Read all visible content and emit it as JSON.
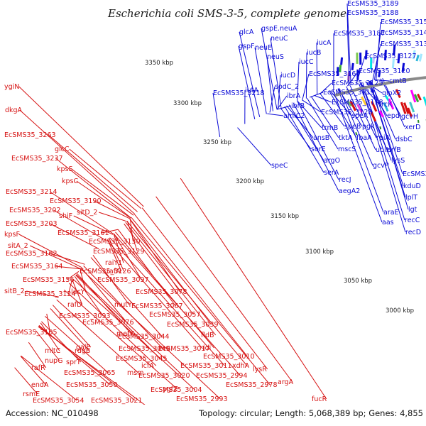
{
  "title": "Escherichia coli SMS-3-5, complete genome",
  "footer": {
    "accession": "Accession: NC_010498",
    "topology": "Topology: circular; Length: 5,068,389 bp; Genes: 4,855"
  },
  "kbp_ticks": [
    "3400 kbp",
    "3350 kbp",
    "3300 kbp",
    "3250 kbp",
    "3200 kbp",
    "3150 kbp",
    "3100 kbp",
    "3050 kbp",
    "3000 kbp"
  ],
  "colors": {
    "forward": "#0a0ad6",
    "reverse": "#d61010",
    "backbone": "#8a8a8a",
    "tick_dash": "#2a8a2a"
  },
  "forward_genes": [
    "EcSMS35_3189",
    "EcSMS35_3188",
    "EcSMS35_3155",
    "EcSMS35_3141",
    "EcSMS35_3131",
    "EcSMS35_3127",
    "EcSMS35_3187",
    "glcA",
    "gspE.neuA",
    "neuC",
    "gspF",
    "neuE",
    "neuS",
    "iucA",
    "iucB",
    "iucC",
    "iucD",
    "iutA",
    "sodC_2",
    "ibrA",
    "ibrB",
    "EcSMS35_3218",
    "amiC2",
    "EcSMS35_3167",
    "EcSMS35_3125",
    "EcSMS35_3119",
    "EcSMS35_3118",
    "EcSMS35_3128",
    "EcSMS35_3120",
    "cmtB",
    "glpX2",
    "frcK",
    "trmB",
    "ansB",
    "speA",
    "epd",
    "speB",
    "pgk",
    "tktA",
    "fbaA",
    "rpiA",
    "mscS",
    "sorE",
    "argO",
    "serA",
    "recJ",
    "aegA2",
    "speC",
    "gcvH",
    "xerD",
    "dsbC",
    "ubiH",
    "prfB",
    "gcvP",
    "lysS",
    "EcSMS35_3018",
    "kduD",
    "lplT",
    "araE",
    "lgt",
    "aas",
    "recC",
    "recD"
  ],
  "reverse_genes": [
    "ygiN",
    "dkgA",
    "EcSMS35_3263",
    "glcC",
    "EcSMS35_3237",
    "kpsS",
    "kpsC",
    "EcSMS35_3214",
    "EcSMS35_3190",
    "EcSMS35_3202",
    "EcSMS35_3203",
    "kpsF",
    "shiF",
    "sitD_2",
    "EcSMS35_3161",
    "sitA_2",
    "EcSMS35_3130",
    "EcSMS35_3162",
    "EcSMS35_3129",
    "EcSMS35_3164",
    "raiY1",
    "EcSMS35_3126",
    "rafA",
    "EcSMS35_3156",
    "sitB_2",
    "EcSMS35_3097",
    "EcSMS35_3124",
    "lacY",
    "EcSMS35_3078",
    "rafD",
    "mutY",
    "EcSMS35_3093",
    "EcSMS35_3067",
    "EcSMS35_3076",
    "EcSMS35_3057",
    "EcSMS35_3039",
    "EcSMS35_3105",
    "metK",
    "galP",
    "EcSMS35_3044",
    "mltC",
    "rdgB",
    "nupG",
    "sprT",
    "EcSMS35_3049",
    "EcSMS35_3017",
    "fldB",
    "idi",
    "EcSMS35_3045",
    "EcSMS35_3010",
    "rafR",
    "EcSMS35_3065",
    "msm",
    "icfA",
    "EcSMS35_3011",
    "xdhA",
    "endA",
    "EcSMS35_3050",
    "EcSMS35_3020",
    "EcSMS35_2994",
    "lysR",
    "rsmE",
    "ygfZ",
    "EcSMS35_3004",
    "EcSMS35_2978",
    "argA",
    "EcSMS35_3054",
    "EcSMS35_3021",
    "EcSMS35_2993",
    "bglA",
    "fucR"
  ]
}
